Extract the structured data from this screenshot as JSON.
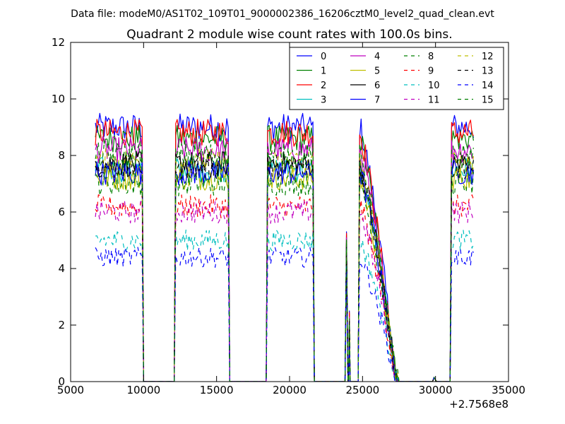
{
  "chart_data": {
    "type": "line",
    "suptitle": "Data file: modeM0/AS1T02_109T01_9000002386_16206cztM0_level2_quad_clean.evt",
    "title": "Quadrant 2 module wise count rates with 100.0s bins.",
    "xlabel": "",
    "ylabel": "",
    "xlim": [
      5000,
      35000
    ],
    "ylim": [
      0,
      12
    ],
    "x_offset_label": "+2.7568e8",
    "xticks": [
      5000,
      10000,
      15000,
      20000,
      25000,
      30000,
      35000
    ],
    "yticks": [
      0,
      2,
      4,
      6,
      8,
      10,
      12
    ],
    "grid": false,
    "legend_position": "top-right",
    "legend_columns": 4,
    "segments": [
      {
        "x_start": 6700,
        "x_end": 9900
      },
      {
        "x_start": 12200,
        "x_end": 15800
      },
      {
        "x_start": 18500,
        "x_end": 21600
      },
      {
        "x_start": 24800,
        "x_end": 27400,
        "decaying": true
      },
      {
        "x_start": 31100,
        "x_end": 32600
      }
    ],
    "spike": {
      "x": 23900,
      "y": 5.3
    },
    "series": [
      {
        "name": "0",
        "color": "#0000ff",
        "dash": "solid",
        "level": 9.0
      },
      {
        "name": "1",
        "color": "#008000",
        "dash": "solid",
        "level": 8.6
      },
      {
        "name": "2",
        "color": "#ff0000",
        "dash": "solid",
        "level": 8.8
      },
      {
        "name": "3",
        "color": "#00bfbf",
        "dash": "solid",
        "level": 7.5
      },
      {
        "name": "4",
        "color": "#bf00bf",
        "dash": "solid",
        "level": 8.2
      },
      {
        "name": "5",
        "color": "#bfbf00",
        "dash": "solid",
        "level": 7.2
      },
      {
        "name": "6",
        "color": "#000000",
        "dash": "solid",
        "level": 7.7
      },
      {
        "name": "7",
        "color": "#0000ff",
        "dash": "solid",
        "level": 7.4
      },
      {
        "name": "8",
        "color": "#008000",
        "dash": "dashed",
        "level": 7.0
      },
      {
        "name": "9",
        "color": "#ff0000",
        "dash": "dashed",
        "level": 6.2
      },
      {
        "name": "10",
        "color": "#00bfbf",
        "dash": "dashed",
        "level": 5.0
      },
      {
        "name": "11",
        "color": "#bf00bf",
        "dash": "dashed",
        "level": 6.0
      },
      {
        "name": "12",
        "color": "#bfbf00",
        "dash": "dashed",
        "level": 7.8
      },
      {
        "name": "13",
        "color": "#000000",
        "dash": "dashed",
        "level": 7.6
      },
      {
        "name": "14",
        "color": "#0000ff",
        "dash": "dashed",
        "level": 4.4
      },
      {
        "name": "15",
        "color": "#008000",
        "dash": "dashed",
        "level": 8.0
      }
    ]
  }
}
